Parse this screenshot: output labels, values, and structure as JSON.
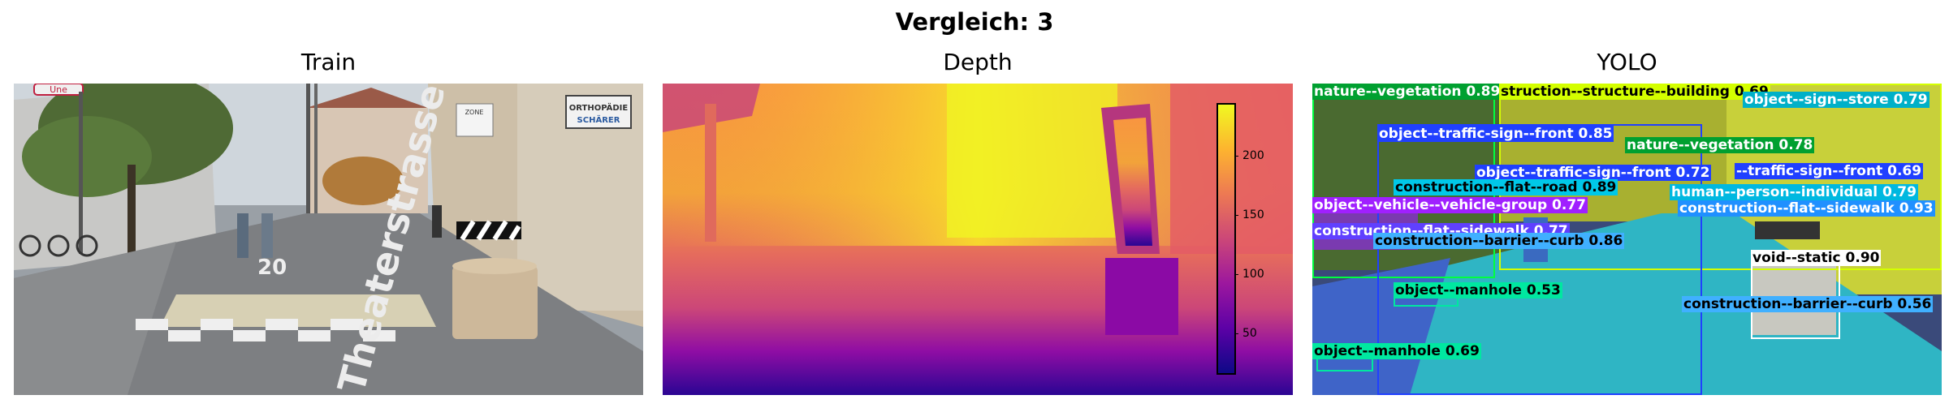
{
  "figure": {
    "title": "Vergleich: 3"
  },
  "panels": [
    {
      "id": "train",
      "title": "Train"
    },
    {
      "id": "depth",
      "title": "Depth"
    },
    {
      "id": "yolo",
      "title": "YOLO"
    }
  ],
  "train_scene": {
    "shop_sign_line1": "ORTHOPÄDIE",
    "shop_sign_line2": "SCHÄRER",
    "street_marking": "Theaterstrasse",
    "road_number": "20",
    "zone_sign": "ZONE",
    "corner_sign": "Une"
  },
  "colorbar": {
    "ticks": [
      "50",
      "100",
      "150",
      "200"
    ],
    "range": [
      15,
      240
    ],
    "colormap": "plasma"
  },
  "detections": [
    {
      "label": "nature--vegetation 0.89",
      "color": "#00ff40"
    },
    {
      "label": "struction--structure--building 0.69",
      "color": "#d4ff00"
    },
    {
      "label": "object--sign--store 0.79",
      "color": "#00d0e0"
    },
    {
      "label": "object--traffic-sign--front 0.85",
      "color": "#2040ff"
    },
    {
      "label": "nature--vegetation 0.78",
      "color": "#00ff40"
    },
    {
      "label": "object--traffic-sign--front 0.72",
      "color": "#2040ff"
    },
    {
      "label": "--traffic-sign--front 0.69",
      "color": "#2040ff"
    },
    {
      "label": "construction--flat--road 0.89",
      "color": "#00c8e8"
    },
    {
      "label": "human--person--individual 0.79",
      "color": "#00e0ff"
    },
    {
      "label": "object--vehicle--vehicle-group 0.77",
      "color": "#a020ff"
    },
    {
      "label": "construction--flat--sidewalk 0.93",
      "color": "#2090ff"
    },
    {
      "label": "construction--flat--sidewalk 0.77",
      "color": "#6040ff"
    },
    {
      "label": "construction--barrier--curb 0.86",
      "color": "#40b0ff"
    },
    {
      "label": "void--static 0.90",
      "color": "#ffffff"
    },
    {
      "label": "object--manhole 0.53",
      "color": "#00e8a0"
    },
    {
      "label": "construction--barrier--curb 0.56",
      "color": "#40b0ff"
    },
    {
      "label": "object--manhole 0.69",
      "color": "#00e8a0"
    }
  ]
}
